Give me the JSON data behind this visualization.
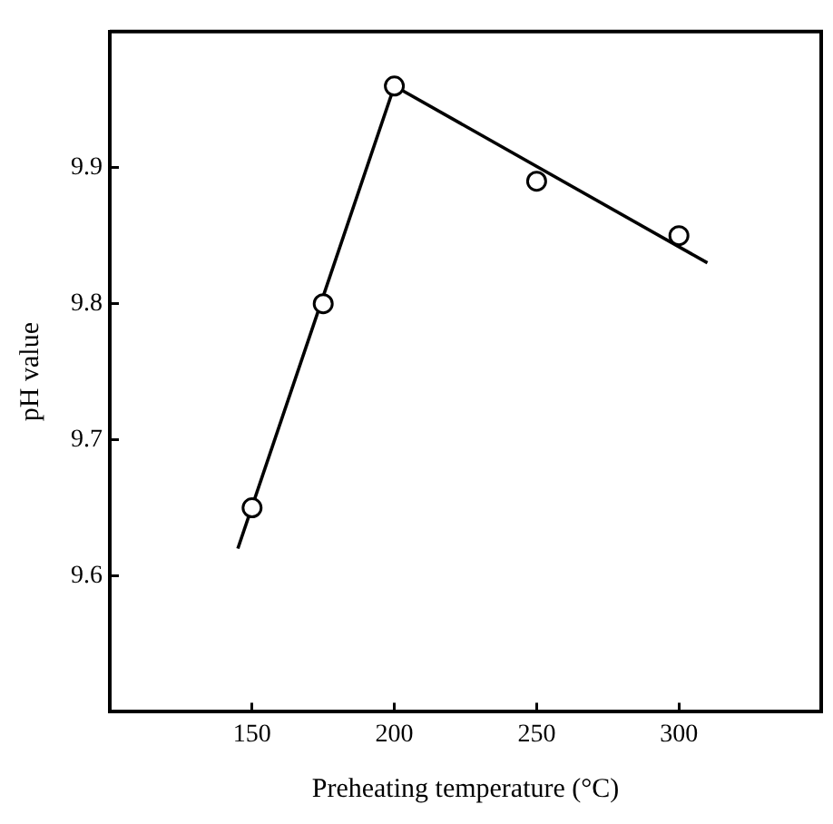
{
  "chart_data": {
    "type": "scatter",
    "xlabel": "Preheating temperature (°C)",
    "ylabel": "pH value",
    "xlim": [
      100,
      350
    ],
    "xticks": [
      150,
      200,
      250,
      300
    ],
    "ylim": [
      9.5,
      10.0
    ],
    "yticks": [
      9.6,
      9.7,
      9.8,
      9.9
    ],
    "grid": false,
    "legend": false,
    "series": [
      {
        "color": "#000000",
        "marker": "circle",
        "x": [
          150,
          175,
          200,
          250,
          300
        ],
        "values": [
          9.65,
          9.8,
          9.96,
          9.89,
          9.85
        ]
      },
      {
        "type": "line",
        "color": "#000000",
        "marker": "none",
        "line_style": "solid",
        "x": [
          145,
          200
        ],
        "values": [
          9.62,
          9.96
        ]
      },
      {
        "type": "line",
        "color": "#000000",
        "marker": "none",
        "line_style": "solid",
        "x": [
          200,
          310
        ],
        "values": [
          9.96,
          9.83
        ]
      }
    ]
  }
}
